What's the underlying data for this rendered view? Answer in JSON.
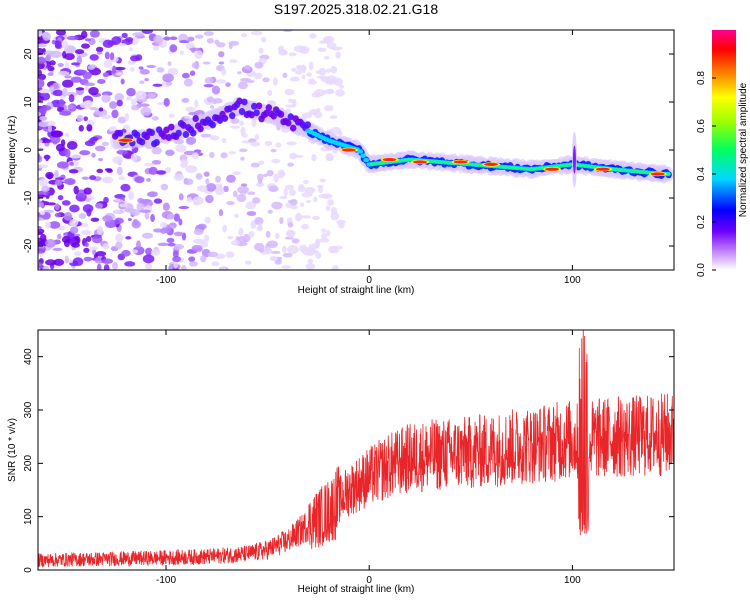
{
  "chart_data": [
    {
      "type": "heatmap",
      "title": "S197.2025.318.02.21.G18",
      "xlabel": "Height of straight line (km)",
      "ylabel": "Frequency (Hz)",
      "xlim": [
        -163,
        150
      ],
      "ylim": [
        -25,
        25
      ],
      "x_ticks": [
        -100,
        0,
        100
      ],
      "y_ticks": [
        -20,
        -10,
        0,
        10,
        20
      ],
      "x_tick_labels": [
        "-100",
        "0",
        "100"
      ],
      "y_tick_labels": [
        "-20",
        "-10",
        "0",
        "10",
        "20"
      ],
      "colorbar": {
        "label": "Normalized spectral amplitude",
        "range": [
          0,
          1
        ],
        "ticks": [
          0.0,
          0.2,
          0.4,
          0.6,
          0.8
        ],
        "tick_labels": [
          "0.0",
          "0.2",
          "0.4",
          "0.6",
          "0.8"
        ],
        "colors": [
          "#ffffff",
          "#8000ff",
          "#0000ff",
          "#00e0ff",
          "#00ff40",
          "#ffff00",
          "#ff8000",
          "#ff0000",
          "#ff0080"
        ]
      },
      "ridge": {
        "description_points_x": [
          -120,
          -100,
          -80,
          -65,
          -45,
          -35,
          -20,
          -5,
          0,
          20,
          50,
          80,
          100,
          120,
          145
        ],
        "description_points_y": [
          2,
          3,
          6,
          9,
          7,
          5,
          2,
          0,
          -3,
          -2,
          -3,
          -4,
          -3,
          -4,
          -5
        ]
      }
    },
    {
      "type": "line",
      "title": "",
      "xlabel": "Height of straight line (km)",
      "ylabel": "SNR (10 * v/v)",
      "xlim": [
        -163,
        150
      ],
      "ylim": [
        0,
        450
      ],
      "x_ticks": [
        -100,
        0,
        100
      ],
      "y_ticks": [
        0,
        100,
        200,
        300,
        400
      ],
      "x_tick_labels": [
        "-100",
        "0",
        "100"
      ],
      "y_tick_labels": [
        "0",
        "100",
        "200",
        "300",
        "400"
      ],
      "series": [
        {
          "name": "SNR",
          "color": "#e8262a",
          "trend_x": [
            -163,
            -140,
            -110,
            -80,
            -60,
            -50,
            -40,
            -30,
            -20,
            -15,
            -10,
            0,
            10,
            20,
            30,
            50,
            70,
            90,
            100,
            105,
            110,
            120,
            130,
            150
          ],
          "trend_y": [
            18,
            20,
            22,
            25,
            30,
            38,
            55,
            85,
            110,
            130,
            150,
            175,
            195,
            210,
            215,
            220,
            230,
            240,
            245,
            235,
            245,
            250,
            250,
            255
          ]
        }
      ]
    }
  ]
}
